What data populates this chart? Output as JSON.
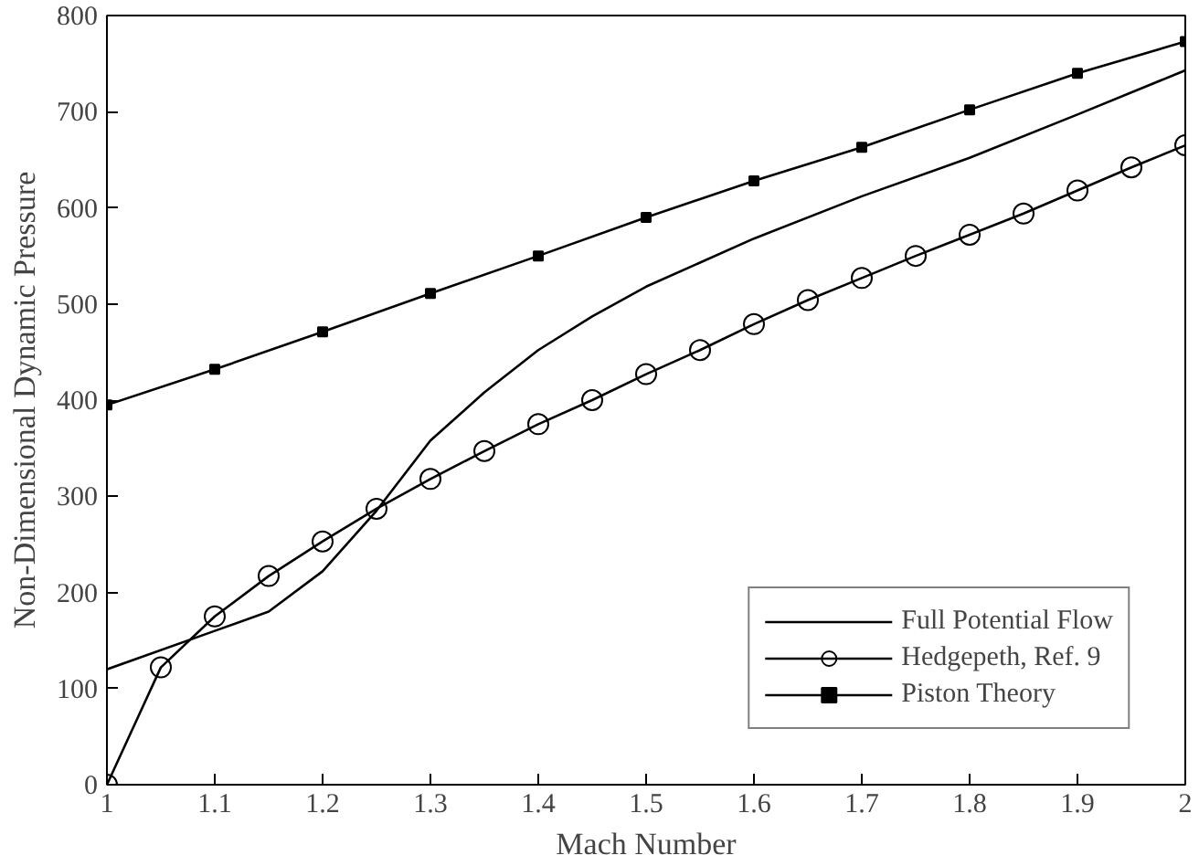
{
  "chart_data": {
    "type": "line",
    "xlabel": "Mach Number",
    "ylabel": "Non-Dimensional Dynamic Pressure",
    "xlim": [
      1,
      2
    ],
    "ylim": [
      0,
      800
    ],
    "xticks": [
      1,
      1.1,
      1.2,
      1.3,
      1.4,
      1.5,
      1.6,
      1.7,
      1.8,
      1.9,
      2
    ],
    "yticks": [
      0,
      100,
      200,
      300,
      400,
      500,
      600,
      700,
      800
    ],
    "grid": false,
    "legend": "bottom right",
    "series": [
      {
        "name": "Full Potential Flow",
        "color": "#000000",
        "marker": "none",
        "x": [
          1.0,
          1.1,
          1.15,
          1.2,
          1.25,
          1.3,
          1.35,
          1.4,
          1.45,
          1.5,
          1.6,
          1.7,
          1.8,
          1.9,
          2.0
        ],
        "values": [
          120,
          160,
          180,
          222,
          285,
          358,
          408,
          452,
          487,
          518,
          568,
          612,
          652,
          697,
          743
        ]
      },
      {
        "name": "Hedgepeth, Ref. 9",
        "color": "#000000",
        "marker": "circle",
        "x": [
          1.0,
          1.05,
          1.1,
          1.15,
          1.2,
          1.25,
          1.3,
          1.35,
          1.4,
          1.45,
          1.5,
          1.55,
          1.6,
          1.65,
          1.7,
          1.75,
          1.8,
          1.85,
          1.9,
          1.95,
          2.0
        ],
        "values": [
          0,
          122,
          175,
          217,
          253,
          287,
          318,
          347,
          375,
          400,
          427,
          452,
          479,
          504,
          527,
          550,
          572,
          594,
          618,
          642,
          665
        ]
      },
      {
        "name": "Piston Theory",
        "color": "#000000",
        "marker": "square",
        "x": [
          1.0,
          1.1,
          1.2,
          1.3,
          1.4,
          1.5,
          1.6,
          1.7,
          1.8,
          1.9,
          2.0
        ],
        "values": [
          395,
          432,
          471,
          511,
          550,
          590,
          628,
          663,
          702,
          740,
          773
        ]
      }
    ]
  }
}
